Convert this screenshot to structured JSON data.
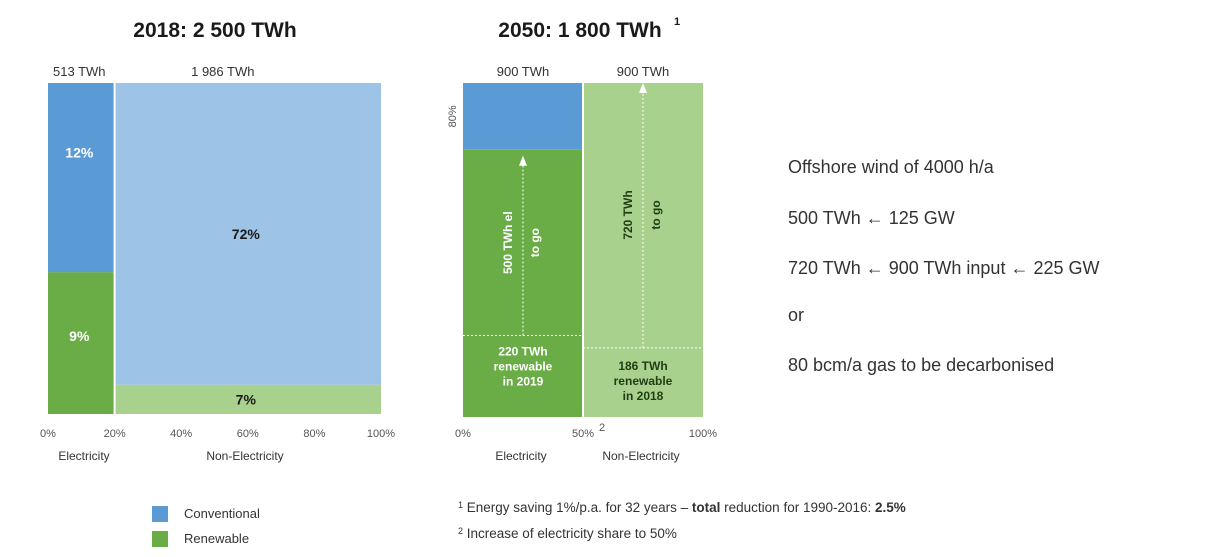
{
  "colors": {
    "conventional": "#5b9bd5",
    "renewable": "#6aad46",
    "non_elec_conventional": "#9dc3e6",
    "non_elec_renewable": "#a9d18e",
    "to_go_dark": "#6aad46",
    "to_go_light": "#a9d18e"
  },
  "chart_data": [
    {
      "type": "mekko",
      "title": "2018: 2 500 TWh",
      "columns": [
        {
          "name": "Electricity",
          "total_label": "513 TWh",
          "x_start": 0,
          "x_end": 20,
          "segments": [
            {
              "series": "Renewable",
              "share_pct": 9,
              "label": "9%"
            },
            {
              "series": "Conventional",
              "share_pct": 12,
              "label": "12%"
            }
          ]
        },
        {
          "name": "Non-Electricity",
          "total_label": "1 986 TWh",
          "x_start": 20,
          "x_end": 100,
          "segments": [
            {
              "series": "Renewable",
              "share_pct": 7,
              "label": "7%"
            },
            {
              "series": "Conventional",
              "share_pct": 72,
              "label": "72%"
            }
          ]
        }
      ],
      "x_ticks": [
        "0%",
        "20%",
        "40%",
        "60%",
        "80%",
        "100%"
      ],
      "x_tick_values": [
        0,
        20,
        40,
        60,
        80,
        100
      ],
      "x_category_labels": [
        "Electricity",
        "Non-Electricity"
      ]
    },
    {
      "type": "mekko",
      "title": "2050: 1 800 TWh",
      "title_superscript": "1",
      "columns": [
        {
          "name": "Electricity",
          "total_label": "900 TWh",
          "x_start": 0,
          "x_end": 50,
          "segments": [
            {
              "series": "Renewable",
              "share_pct": 24.4,
              "label": "220 TWh renewable in 2019"
            },
            {
              "series": "To go",
              "share_pct": 55.6,
              "label": "500 TWh el to go"
            },
            {
              "series": "Conventional",
              "share_pct": 20,
              "label": ""
            }
          ]
        },
        {
          "name": "Non-Electricity",
          "total_label": "900 TWh",
          "x_start": 50,
          "x_end": 100,
          "segments": [
            {
              "series": "Renewable",
              "share_pct": 20.7,
              "label": "186 TWh renewable in 2018"
            },
            {
              "series": "To go",
              "share_pct": 79.3,
              "label": "720 TWh to go"
            }
          ]
        }
      ],
      "y_marker": {
        "label": "80%",
        "value": 80
      },
      "x_ticks": [
        "0%",
        "50%",
        "100%"
      ],
      "x_tick_values": [
        0,
        50,
        100
      ],
      "x_tick_superscript": "2",
      "x_category_labels": [
        "Electricity",
        "Non-Electricity"
      ]
    }
  ],
  "legend": [
    {
      "label": "Conventional",
      "color": "#5b9bd5"
    },
    {
      "label": "Renewable",
      "color": "#6aad46"
    }
  ],
  "side_text": [
    "Offshore wind of 4000 h/a",
    "500 TWh ← 125 GW",
    "720 TWh ← 900 TWh input ← 225 GW",
    "or",
    "80 bcm/a gas to be decarbonised"
  ],
  "footnotes": {
    "fn1": {
      "num": "1",
      "pre": "Energy saving 1%/p.a. for 32 years – ",
      "bold1": "total",
      "mid": " reduction for 1990-2016: ",
      "bold2": "2.5%"
    },
    "fn2": {
      "num": "2",
      "text": "Increase of electricity share to 50%"
    }
  }
}
